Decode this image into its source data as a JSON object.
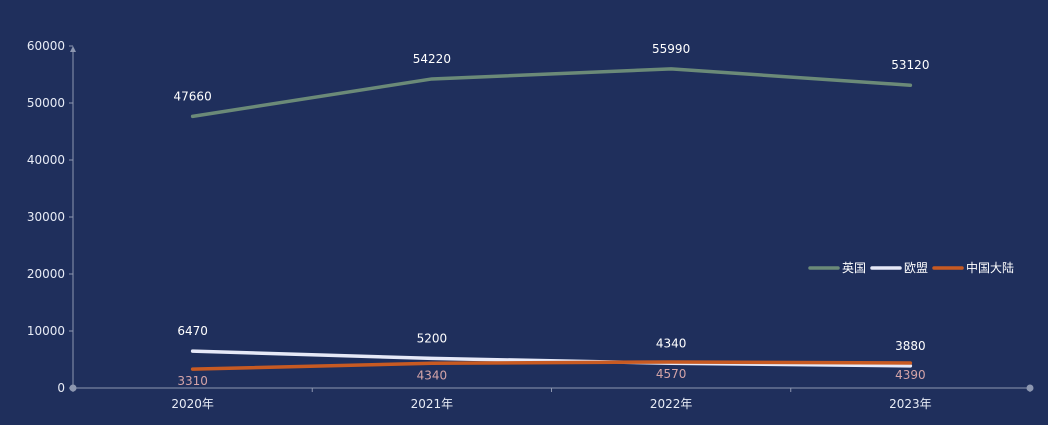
{
  "chart_data": {
    "type": "line",
    "title": "",
    "xlabel": "",
    "ylabel": "",
    "categories": [
      "2020年",
      "2021年",
      "2022年",
      "2023年"
    ],
    "ylim": [
      0,
      60000
    ],
    "yticks": [
      0,
      10000,
      20000,
      30000,
      40000,
      50000,
      60000
    ],
    "grid": false,
    "legend_position": "right",
    "series": [
      {
        "name": "英国",
        "values": [
          47660,
          54220,
          55990,
          53120
        ],
        "color": "#6b8a78",
        "label_color": "#ffffff",
        "label_position": "above"
      },
      {
        "name": "欧盟",
        "values": [
          6470,
          5200,
          4340,
          3880
        ],
        "color": "#e6e9f8",
        "label_color": "#ffffff",
        "label_position": "above"
      },
      {
        "name": "中国大陆",
        "values": [
          3310,
          4340,
          4570,
          4390
        ],
        "color": "#c85a22",
        "label_color": "#d4a4a8",
        "label_position": "below"
      }
    ],
    "axis_color": "#8d97b0",
    "background": "#1f2f5c"
  }
}
